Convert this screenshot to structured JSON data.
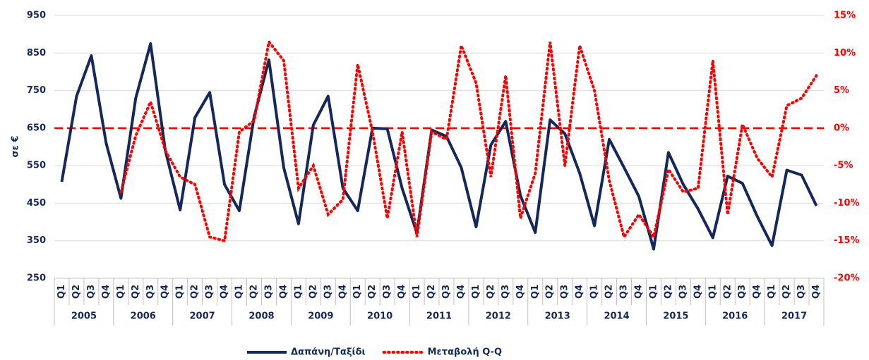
{
  "chart_data": {
    "type": "line",
    "ylabel": "σε €",
    "categories": [
      "Q1",
      "Q2",
      "Q3",
      "Q4",
      "Q1",
      "Q2",
      "Q3",
      "Q4",
      "Q1",
      "Q2",
      "Q3",
      "Q4",
      "Q1",
      "Q2",
      "Q3",
      "Q4",
      "Q1",
      "Q2",
      "Q3",
      "Q4",
      "Q1",
      "Q2",
      "Q3",
      "Q4",
      "Q1",
      "Q2",
      "Q3",
      "Q4",
      "Q1",
      "Q2",
      "Q3",
      "Q4",
      "Q1",
      "Q2",
      "Q3",
      "Q4",
      "Q1",
      "Q2",
      "Q3",
      "Q4",
      "Q1",
      "Q2",
      "Q3",
      "Q4",
      "Q1",
      "Q2",
      "Q3",
      "Q4",
      "Q1",
      "Q2",
      "Q3",
      "Q4"
    ],
    "groups": [
      "2005",
      "2006",
      "2007",
      "2008",
      "2009",
      "2010",
      "2011",
      "2012",
      "2013",
      "2014",
      "2015",
      "2016",
      "2017"
    ],
    "series": [
      {
        "name": "Δαπάνη/Ταξίδι",
        "color": "#14285a",
        "style": "solid",
        "values": [
          507,
          735,
          843,
          610,
          463,
          730,
          875,
          590,
          432,
          678,
          745,
          500,
          430,
          680,
          832,
          545,
          395,
          658,
          735,
          490,
          430,
          650,
          648,
          490,
          370,
          645,
          628,
          545,
          387,
          605,
          668,
          470,
          372,
          672,
          635,
          530,
          390,
          620,
          545,
          468,
          328,
          585,
          500,
          435,
          358,
          522,
          503,
          415,
          337,
          538,
          525,
          443
        ]
      },
      {
        "name": "Μεταβολή Q-Q",
        "color": "#ff0000",
        "style": "dotted",
        "axis": "y2",
        "values": [
          null,
          null,
          null,
          null,
          -8.5,
          -1,
          3.5,
          -3,
          -6.5,
          -7.5,
          -14.5,
          -15,
          -0.5,
          1,
          11.5,
          9,
          -8,
          -5,
          -11.5,
          -9.5,
          8.5,
          -0.5,
          -12,
          -0.5,
          -14.5,
          -0.5,
          -1.5,
          11,
          6,
          -6.5,
          7,
          -12,
          -6,
          11.5,
          -5,
          11,
          5,
          -7,
          -14.5,
          -11.5,
          -14.5,
          -5.5,
          -8.5,
          -8,
          9,
          -11.5,
          0.5,
          -4,
          -6.5,
          3,
          4,
          7
        ]
      }
    ],
    "reference_line": {
      "value": 0,
      "axis": "y2",
      "color": "#ff0000"
    },
    "ylim": [
      250,
      950
    ],
    "yticks": [
      250,
      350,
      450,
      550,
      650,
      750,
      850,
      950
    ],
    "y2lim": [
      -20,
      15
    ],
    "y2ticks": [
      {
        "value": -20,
        "label": "-20%"
      },
      {
        "value": -15,
        "label": "-15%"
      },
      {
        "value": -10,
        "label": "-10%"
      },
      {
        "value": -5,
        "label": "-5%"
      },
      {
        "value": 0,
        "label": "0%"
      },
      {
        "value": 5,
        "label": "5%"
      },
      {
        "value": 10,
        "label": "10%"
      },
      {
        "value": 15,
        "label": "15%"
      }
    ],
    "grid": true,
    "legend": "bottom"
  }
}
